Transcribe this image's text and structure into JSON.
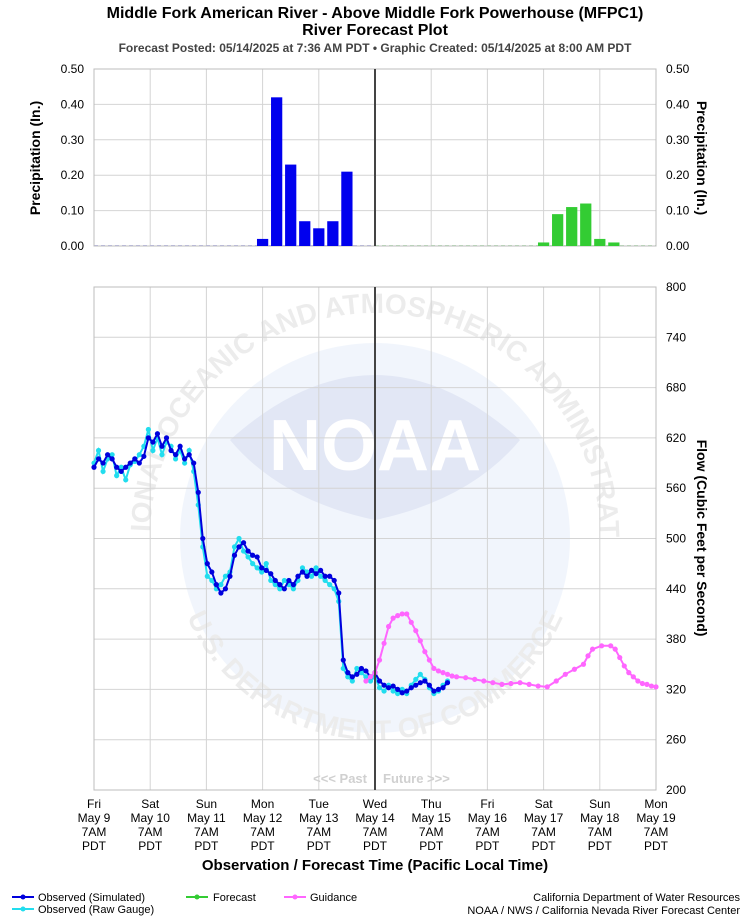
{
  "header": {
    "title_line1": "Middle Fork American River - Above Middle Fork Powerhouse (MFPC1)",
    "title_line2": "River Forecast Plot",
    "subtitle": "Forecast Posted: 05/14/2025 at 7:36 AM PDT  •  Graphic Created: 05/14/2025 at 8:00 AM PDT"
  },
  "watermark": {
    "ring_text_top": "NATIONAL OCEANIC AND ATMOSPHERIC ADMINISTRATION",
    "ring_text_bottom": "U.S. DEPARTMENT OF COMMERCE",
    "center_text": "NOAA"
  },
  "chart_data": [
    {
      "type": "bar",
      "ylabel_left": "Precipitation (In.)",
      "ylabel_right": "Precipitation (In.)",
      "ylim": [
        0,
        0.5
      ],
      "yticks": [
        "0.00",
        "0.10",
        "0.20",
        "0.30",
        "0.40",
        "0.50"
      ],
      "xlim_hours": [
        0,
        240
      ],
      "grid": true,
      "series": [
        {
          "name": "Observed",
          "color": "#0000ee",
          "x": [
            72,
            78,
            84,
            90,
            96,
            102,
            108
          ],
          "values": [
            0.02,
            0.42,
            0.23,
            0.07,
            0.05,
            0.07,
            0.21
          ]
        },
        {
          "name": "Forecast",
          "color": "#33cc33",
          "x": [
            192,
            198,
            204,
            210,
            216,
            222
          ],
          "values": [
            0.01,
            0.09,
            0.11,
            0.12,
            0.02,
            0.01
          ]
        }
      ]
    },
    {
      "type": "line",
      "ylabel": "Flow (Cubic Feet per Second)",
      "xlabel": "Observation / Forecast Time (Pacific Local Time)",
      "ylim": [
        200,
        800
      ],
      "yticks": [
        "200",
        "260",
        "320",
        "380",
        "440",
        "500",
        "560",
        "620",
        "680",
        "740",
        "800"
      ],
      "xlim_hours": [
        0,
        240
      ],
      "now_hour": 120,
      "past_label": "<<< Past",
      "future_label": "Future >>>",
      "grid": true,
      "x_categories": [
        {
          "day": "Fri",
          "date": "May 9",
          "time": "7AM",
          "tz": "PDT"
        },
        {
          "day": "Sat",
          "date": "May 10",
          "time": "7AM",
          "tz": "PDT"
        },
        {
          "day": "Sun",
          "date": "May 11",
          "time": "7AM",
          "tz": "PDT"
        },
        {
          "day": "Mon",
          "date": "May 12",
          "time": "7AM",
          "tz": "PDT"
        },
        {
          "day": "Tue",
          "date": "May 13",
          "time": "7AM",
          "tz": "PDT"
        },
        {
          "day": "Wed",
          "date": "May 14",
          "time": "7AM",
          "tz": "PDT"
        },
        {
          "day": "Thu",
          "date": "May 15",
          "time": "7AM",
          "tz": "PDT"
        },
        {
          "day": "Fri",
          "date": "May 16",
          "time": "7AM",
          "tz": "PDT"
        },
        {
          "day": "Sat",
          "date": "May 17",
          "time": "7AM",
          "tz": "PDT"
        },
        {
          "day": "Sun",
          "date": "May 18",
          "time": "7AM",
          "tz": "PDT"
        },
        {
          "day": "Mon",
          "date": "May 19",
          "time": "7AM",
          "tz": "PDT"
        }
      ],
      "series": [
        {
          "name": "Observed (Simulated)",
          "color": "#0000dd",
          "points": [
            [
              0,
              585
            ],
            [
              2,
              595
            ],
            [
              4,
              590
            ],
            [
              6,
              600
            ],
            [
              8,
              595
            ],
            [
              10,
              585
            ],
            [
              12,
              580
            ],
            [
              14,
              585
            ],
            [
              16,
              590
            ],
            [
              18,
              595
            ],
            [
              20,
              590
            ],
            [
              22,
              598
            ],
            [
              24,
              620
            ],
            [
              26,
              615
            ],
            [
              28,
              625
            ],
            [
              30,
              610
            ],
            [
              32,
              620
            ],
            [
              34,
              605
            ],
            [
              36,
              600
            ],
            [
              38,
              610
            ],
            [
              40,
              595
            ],
            [
              42,
              600
            ],
            [
              44,
              590
            ],
            [
              46,
              555
            ],
            [
              48,
              500
            ],
            [
              50,
              470
            ],
            [
              52,
              460
            ],
            [
              54,
              445
            ],
            [
              56,
              435
            ],
            [
              58,
              440
            ],
            [
              60,
              455
            ],
            [
              62,
              480
            ],
            [
              64,
              490
            ],
            [
              66,
              495
            ],
            [
              68,
              485
            ],
            [
              70,
              480
            ],
            [
              72,
              478
            ],
            [
              74,
              465
            ],
            [
              76,
              462
            ],
            [
              78,
              458
            ],
            [
              80,
              450
            ],
            [
              82,
              445
            ],
            [
              84,
              440
            ],
            [
              86,
              450
            ],
            [
              88,
              445
            ],
            [
              90,
              455
            ],
            [
              92,
              460
            ],
            [
              94,
              455
            ],
            [
              96,
              462
            ],
            [
              98,
              458
            ],
            [
              100,
              462
            ],
            [
              102,
              455
            ],
            [
              104,
              455
            ],
            [
              106,
              450
            ],
            [
              108,
              435
            ],
            [
              110,
              355
            ],
            [
              112,
              340
            ],
            [
              114,
              335
            ],
            [
              116,
              338
            ],
            [
              118,
              345
            ],
            [
              120,
              342
            ],
            [
              122,
              335
            ],
            [
              124,
              340
            ],
            [
              126,
              330
            ],
            [
              128,
              325
            ],
            [
              130,
              322
            ],
            [
              132,
              324
            ],
            [
              134,
              320
            ],
            [
              136,
              316
            ],
            [
              138,
              318
            ],
            [
              140,
              322
            ],
            [
              142,
              325
            ],
            [
              144,
              328
            ],
            [
              146,
              330
            ],
            [
              148,
              325
            ],
            [
              150,
              318
            ],
            [
              152,
              320
            ],
            [
              154,
              322
            ],
            [
              156,
              328
            ]
          ]
        },
        {
          "name": "Observed (Raw Gauge)",
          "color": "#22ddee",
          "points": [
            [
              0,
              590
            ],
            [
              2,
              605
            ],
            [
              4,
              580
            ],
            [
              6,
              595
            ],
            [
              8,
              600
            ],
            [
              10,
              575
            ],
            [
              12,
              585
            ],
            [
              14,
              570
            ],
            [
              16,
              588
            ],
            [
              18,
              592
            ],
            [
              20,
              600
            ],
            [
              22,
              610
            ],
            [
              24,
              630
            ],
            [
              26,
              605
            ],
            [
              28,
              620
            ],
            [
              30,
              600
            ],
            [
              32,
              615
            ],
            [
              34,
              610
            ],
            [
              36,
              595
            ],
            [
              38,
              605
            ],
            [
              40,
              590
            ],
            [
              42,
              605
            ],
            [
              44,
              580
            ],
            [
              46,
              540
            ],
            [
              48,
              490
            ],
            [
              50,
              455
            ],
            [
              52,
              450
            ],
            [
              54,
              440
            ],
            [
              56,
              445
            ],
            [
              58,
              455
            ],
            [
              60,
              460
            ],
            [
              62,
              490
            ],
            [
              64,
              500
            ],
            [
              66,
              485
            ],
            [
              68,
              478
            ],
            [
              70,
              470
            ],
            [
              72,
              465
            ],
            [
              74,
              460
            ],
            [
              76,
              470
            ],
            [
              78,
              450
            ],
            [
              80,
              445
            ],
            [
              82,
              440
            ],
            [
              84,
              450
            ],
            [
              86,
              445
            ],
            [
              88,
              440
            ],
            [
              90,
              450
            ],
            [
              92,
              465
            ],
            [
              94,
              460
            ],
            [
              96,
              455
            ],
            [
              98,
              465
            ],
            [
              100,
              455
            ],
            [
              102,
              450
            ],
            [
              104,
              445
            ],
            [
              106,
              440
            ],
            [
              108,
              425
            ],
            [
              110,
              345
            ],
            [
              112,
              335
            ],
            [
              114,
              330
            ],
            [
              116,
              345
            ],
            [
              118,
              340
            ],
            [
              120,
              335
            ],
            [
              122,
              330
            ],
            [
              124,
              335
            ],
            [
              126,
              322
            ],
            [
              128,
              318
            ],
            [
              130,
              325
            ],
            [
              132,
              318
            ],
            [
              134,
              315
            ],
            [
              136,
              320
            ],
            [
              138,
              315
            ],
            [
              140,
              325
            ],
            [
              142,
              332
            ],
            [
              144,
              338
            ],
            [
              146,
              332
            ],
            [
              148,
              322
            ],
            [
              150,
              315
            ],
            [
              152,
              318
            ],
            [
              154,
              325
            ],
            [
              156,
              330
            ]
          ]
        },
        {
          "name": "Forecast",
          "color": "#33cc33",
          "points": []
        },
        {
          "name": "Guidance",
          "color": "#ff66ff",
          "points": [
            [
              120,
              330
            ],
            [
              122,
              335
            ],
            [
              124,
              340
            ],
            [
              126,
              355
            ],
            [
              128,
              375
            ],
            [
              130,
              395
            ],
            [
              132,
              405
            ],
            [
              134,
              408
            ],
            [
              136,
              410
            ],
            [
              138,
              410
            ],
            [
              140,
              400
            ],
            [
              142,
              390
            ],
            [
              144,
              378
            ],
            [
              146,
              365
            ],
            [
              148,
              355
            ],
            [
              150,
              345
            ],
            [
              152,
              342
            ],
            [
              154,
              340
            ],
            [
              156,
              338
            ],
            [
              158,
              336
            ],
            [
              160,
              335
            ],
            [
              164,
              334
            ],
            [
              168,
              332
            ],
            [
              172,
              330
            ],
            [
              176,
              328
            ],
            [
              180,
              326
            ],
            [
              184,
              327
            ],
            [
              188,
              328
            ],
            [
              192,
              326
            ],
            [
              196,
              324
            ],
            [
              200,
              323
            ],
            [
              204,
              330
            ],
            [
              208,
              338
            ],
            [
              212,
              344
            ],
            [
              216,
              350
            ],
            [
              218,
              360
            ],
            [
              220,
              368
            ],
            [
              224,
              372
            ],
            [
              228,
              372
            ],
            [
              230,
              368
            ],
            [
              232,
              358
            ],
            [
              234,
              348
            ],
            [
              236,
              340
            ],
            [
              238,
              335
            ],
            [
              240,
              330
            ],
            [
              242,
              327
            ],
            [
              244,
              326
            ],
            [
              246,
              324
            ],
            [
              248,
              323
            ]
          ]
        }
      ]
    }
  ],
  "legend": {
    "observed_simulated": "Observed (Simulated)",
    "observed_raw": "Observed (Raw Gauge)",
    "forecast": "Forecast",
    "guidance": "Guidance"
  },
  "credits": {
    "line1": "California Department of Water Resources",
    "line2": "NOAA / NWS / California Nevada River Forecast Center"
  }
}
